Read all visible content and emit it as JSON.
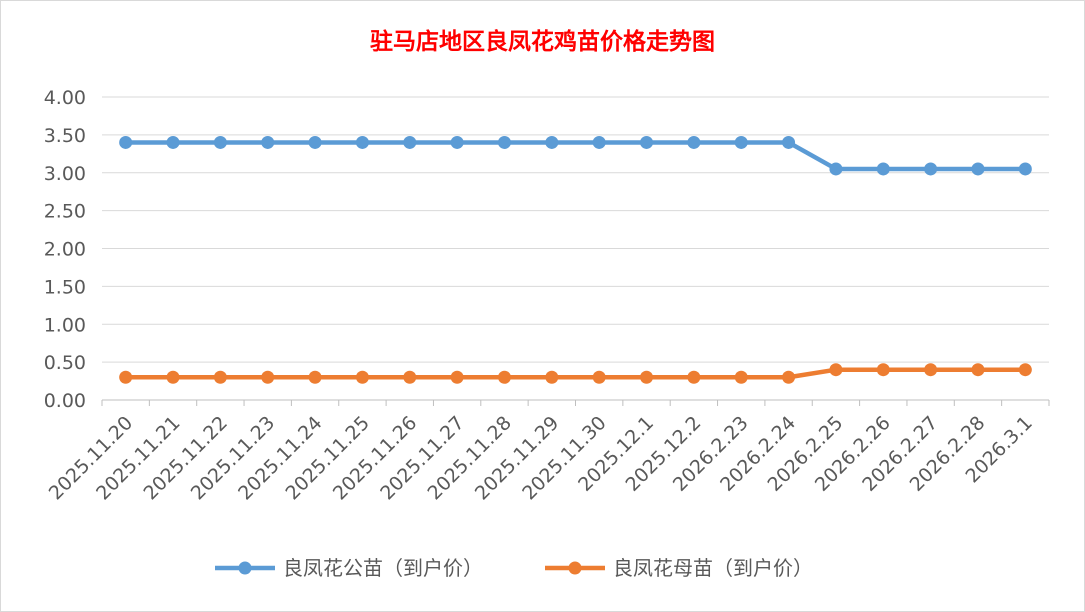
{
  "chart_data": {
    "type": "line",
    "title": "驻马店地区良凤花鸡苗价格走势图",
    "xlabel": "",
    "ylabel": "",
    "categories": [
      "2025.11.20",
      "2025.11.21",
      "2025.11.22",
      "2025.11.23",
      "2025.11.24",
      "2025.11.25",
      "2025.11.26",
      "2025.11.27",
      "2025.11.28",
      "2025.11.29",
      "2025.11.30",
      "2025.12.1",
      "2025.12.2",
      "2026.2.23",
      "2026.2.24",
      "2026.2.25",
      "2026.2.26",
      "2026.2.27",
      "2026.2.28",
      "2026.3.1"
    ],
    "ylim": [
      0,
      4
    ],
    "yticks": [
      "0.00",
      "0.50",
      "1.00",
      "1.50",
      "2.00",
      "2.50",
      "3.00",
      "3.50",
      "4.00"
    ],
    "grid": true,
    "legend_position": "bottom",
    "series": [
      {
        "name": "良凤花公苗（到户价）",
        "color": "#5b9bd5",
        "values": [
          3.4,
          3.4,
          3.4,
          3.4,
          3.4,
          3.4,
          3.4,
          3.4,
          3.4,
          3.4,
          3.4,
          3.4,
          3.4,
          3.4,
          3.4,
          3.05,
          3.05,
          3.05,
          3.05,
          3.05
        ]
      },
      {
        "name": "良凤花母苗（到户价）",
        "color": "#ed7d31",
        "values": [
          0.3,
          0.3,
          0.3,
          0.3,
          0.3,
          0.3,
          0.3,
          0.3,
          0.3,
          0.3,
          0.3,
          0.3,
          0.3,
          0.3,
          0.3,
          0.4,
          0.4,
          0.4,
          0.4,
          0.4
        ]
      }
    ]
  }
}
